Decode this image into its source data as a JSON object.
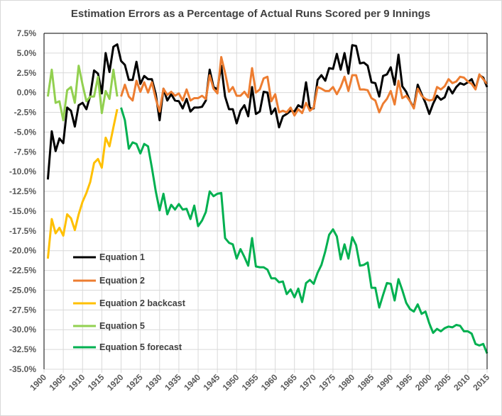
{
  "chart_data": {
    "type": "line",
    "title": "Estimation Errors as a Percentage of Actual Runs Scored per 9 Innings",
    "xlabel": "",
    "ylabel": "",
    "xlim": [
      1900,
      2015
    ],
    "ylim": [
      -35.0,
      7.5
    ],
    "x_ticks": [
      "1900",
      "1905",
      "1910",
      "1915",
      "1920",
      "1925",
      "1930",
      "1935",
      "1940",
      "1945",
      "1950",
      "1955",
      "1960",
      "1965",
      "1970",
      "1975",
      "1980",
      "1985",
      "1990",
      "1995",
      "2000",
      "2005",
      "2010",
      "2015"
    ],
    "y_ticks": [
      "7.5%",
      "5.0%",
      "2.5%",
      "0.0%",
      "-2.5%",
      "-5.0%",
      "-7.5%",
      "-10.0%",
      "-12.5%",
      "-15.0%",
      "-17.5%",
      "-20.0%",
      "-22.5%",
      "-25.0%",
      "-27.5%",
      "-30.0%",
      "-32.5%",
      "-35.0%"
    ],
    "grid": true,
    "legend_placement": "lower-left inside",
    "series": [
      {
        "name": "Equation 1",
        "color": "#000000",
        "start_year": 1901,
        "values": [
          -11.0,
          -4.9,
          -7.4,
          -5.8,
          -6.4,
          -1.9,
          -2.3,
          -4.3,
          -1.6,
          -1.3,
          -2.1,
          -0.4,
          2.8,
          2.4,
          -0.1,
          5.0,
          2.6,
          5.8,
          6.1,
          4.0,
          3.5,
          1.6,
          1.6,
          3.9,
          1.1,
          2.1,
          1.7,
          1.7,
          -0.2,
          -3.5,
          0.5,
          -1.0,
          -0.2,
          -1.0,
          -1.1,
          -2.0,
          -0.8,
          -2.4,
          -1.9,
          -1.9,
          -1.8,
          -1.0,
          2.9,
          0.7,
          0.4,
          3.4,
          -0.5,
          -2.1,
          -2.1,
          -3.9,
          -2.3,
          -1.6,
          -3.0,
          0.7,
          -2.7,
          -2.4,
          0.1,
          0.0,
          -2.7,
          -2.0,
          -4.4,
          -3.0,
          -2.7,
          -2.3,
          -2.4,
          -1.6,
          -1.9,
          1.3,
          -2.0,
          -2.0,
          1.6,
          2.2,
          1.5,
          3.1,
          3.0,
          4.9,
          2.9,
          5.0,
          2.4,
          6.0,
          5.9,
          3.7,
          3.8,
          3.4,
          1.3,
          1.2,
          -0.5,
          2.1,
          2.3,
          3.2,
          1.0,
          4.8,
          0.8,
          0.1,
          -1.1,
          -1.9,
          1.0,
          -0.2,
          -1.3,
          -2.7,
          -1.4,
          -0.4,
          -0.9,
          -0.6,
          0.7,
          -0.1,
          0.7,
          1.2,
          1.0,
          1.3,
          1.7,
          0.5,
          2.2,
          1.9,
          0.7
        ]
      },
      {
        "name": "Equation 2",
        "color": "#ED7D31",
        "start_year": 1920,
        "values": [
          -0.5,
          1.0,
          -0.5,
          -1.0,
          1.5,
          0.1,
          1.3,
          0.0,
          1.3,
          -0.8,
          -2.4,
          0.5,
          -0.3,
          0.1,
          -0.4,
          -0.1,
          -1.0,
          0.4,
          -1.0,
          -0.7,
          -0.7,
          -0.4,
          -0.8,
          2.2,
          0.5,
          -0.1,
          4.5,
          2.5,
          0.1,
          0.7,
          -0.4,
          -0.4,
          0.1,
          -0.6,
          3.1,
          0.0,
          0.4,
          1.8,
          2.0,
          -1.1,
          -0.2,
          -2.5,
          -2.3,
          -2.5,
          -1.9,
          -2.9,
          -2.1,
          -2.6,
          -1.3,
          -2.3,
          -1.9,
          0.7,
          0.5,
          0.2,
          0.2,
          0.7,
          -0.2,
          0.7,
          2.0,
          0.2,
          2.2,
          2.2,
          0.4,
          0.4,
          0.3,
          -0.7,
          -1.0,
          -2.5,
          -1.4,
          -0.8,
          0.2,
          -1.5,
          1.5,
          -0.7,
          -0.4,
          -1.1,
          -2.0,
          0.5,
          -0.4,
          -0.8,
          -1.0,
          -0.9,
          0.7,
          0.4,
          0.8,
          1.7,
          1.2,
          1.4,
          2.0,
          1.9,
          1.4,
          1.1,
          0.4,
          2.3,
          1.7,
          1.1
        ]
      },
      {
        "name": "Equation 2 backcast",
        "color": "#FFC000",
        "start_year": 1901,
        "values": [
          -21.0,
          -16.0,
          -17.8,
          -17.1,
          -18.1,
          -15.4,
          -15.9,
          -17.4,
          -15.4,
          -13.8,
          -12.7,
          -11.3,
          -8.9,
          -8.4,
          -9.5,
          -5.7,
          -6.8,
          -4.4,
          -2.1
        ]
      },
      {
        "name": "Equation 5",
        "color": "#92D050",
        "start_year": 1901,
        "values": [
          -0.5,
          2.9,
          -1.3,
          -1.1,
          -3.5,
          0.3,
          0.7,
          -1.3,
          3.4,
          1.0,
          -1.1,
          -0.5,
          -0.5,
          2.0,
          -2.6,
          0.2,
          -0.8,
          2.9,
          -0.5
        ]
      },
      {
        "name": "Equation 5 forecast",
        "color": "#00B050",
        "start_year": 1920,
        "values": [
          -1.9,
          -3.5,
          -7.1,
          -6.3,
          -6.5,
          -7.7,
          -6.5,
          -6.8,
          -9.5,
          -12.5,
          -14.9,
          -12.8,
          -15.4,
          -14.2,
          -14.8,
          -14.1,
          -14.8,
          -14.7,
          -16.0,
          -14.3,
          -16.9,
          -16.2,
          -15.1,
          -12.5,
          -13.1,
          -12.8,
          -12.7,
          -18.4,
          -19.0,
          -19.2,
          -21.0,
          -19.8,
          -20.8,
          -21.9,
          -18.4,
          -22.0,
          -22.1,
          -22.1,
          -22.4,
          -23.5,
          -23.5,
          -24.0,
          -23.9,
          -25.5,
          -24.9,
          -25.9,
          -24.8,
          -26.5,
          -24.1,
          -23.7,
          -24.2,
          -22.8,
          -21.8,
          -20.1,
          -18.0,
          -17.3,
          -18.2,
          -21.1,
          -19.2,
          -21.0,
          -18.3,
          -19.3,
          -21.9,
          -21.8,
          -21.5,
          -24.7,
          -24.7,
          -27.2,
          -25.6,
          -24.1,
          -24.2,
          -26.3,
          -23.6,
          -25.0,
          -26.6,
          -27.4,
          -27.7,
          -26.8,
          -28.0,
          -27.7,
          -29.2,
          -30.4,
          -29.9,
          -30.2,
          -29.8,
          -29.6,
          -29.7,
          -29.4,
          -29.5,
          -30.2,
          -30.2,
          -30.5,
          -31.8,
          -32.0,
          -31.8,
          -33.0
        ]
      }
    ]
  }
}
